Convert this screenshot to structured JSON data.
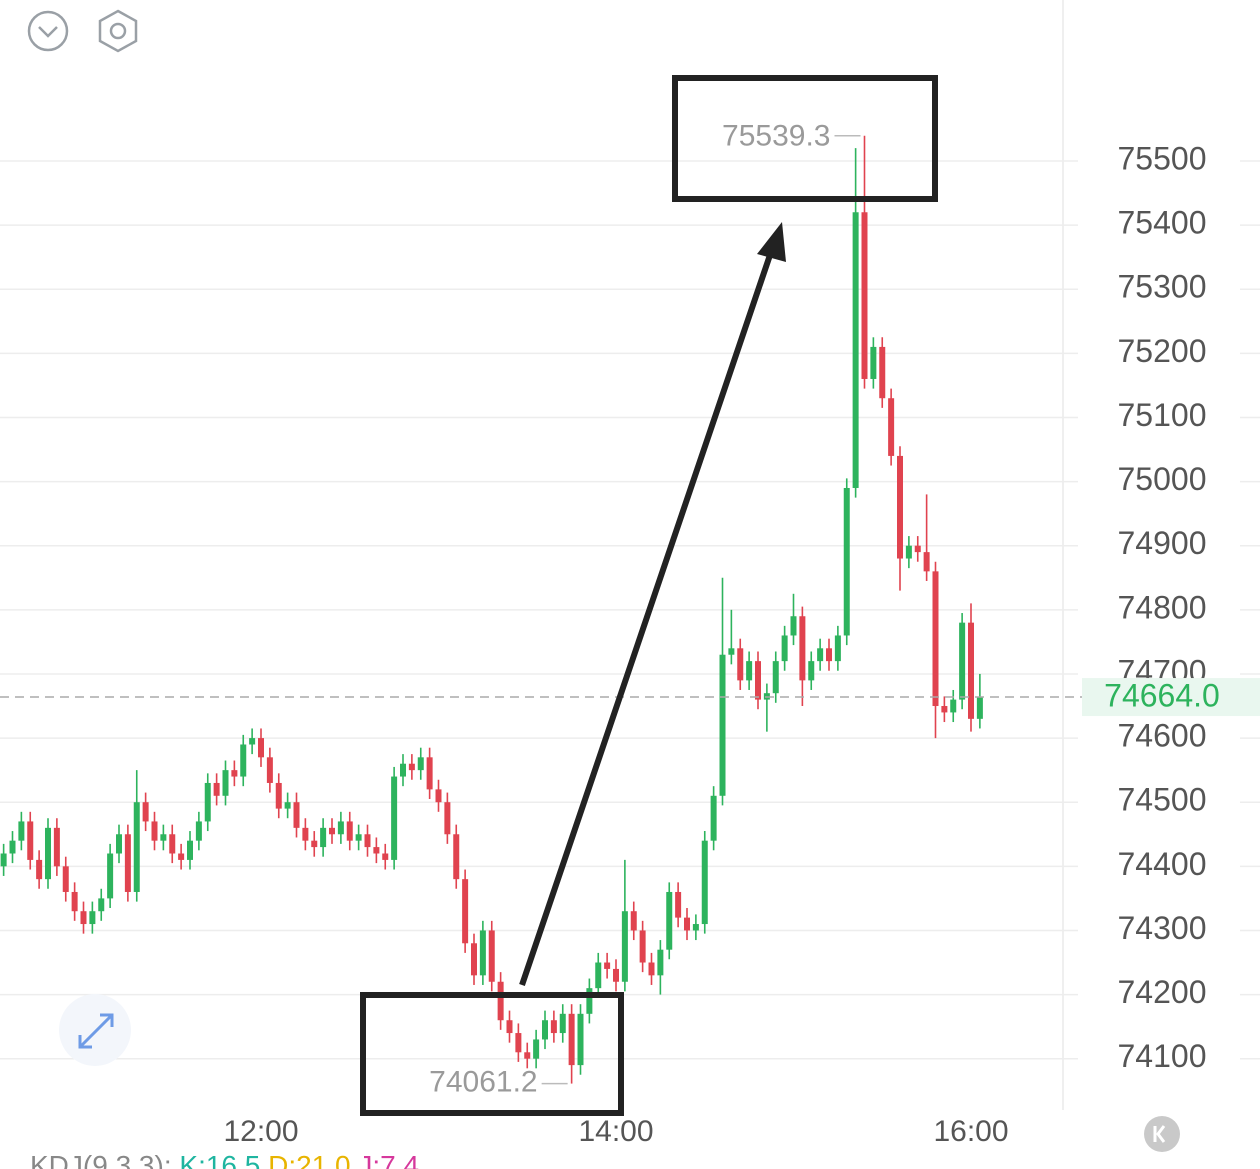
{
  "chart_data": {
    "type": "candlestick",
    "categories": [
      null,
      null,
      null,
      null,
      null,
      null,
      null,
      null,
      null,
      null,
      null,
      null,
      null,
      null,
      null,
      null,
      null,
      null,
      null,
      null,
      null,
      null,
      null,
      null,
      null,
      null,
      null,
      null,
      null,
      "12:00",
      null,
      null,
      null,
      null,
      null,
      null,
      null,
      null,
      null,
      null,
      null,
      null,
      null,
      null,
      null,
      null,
      null,
      null,
      null,
      null,
      null,
      null,
      null,
      null,
      null,
      null,
      null,
      null,
      null,
      null,
      null,
      null,
      null,
      null,
      null,
      null,
      null,
      null,
      null,
      "14:00",
      null,
      null,
      null,
      null,
      null,
      null,
      null,
      null,
      null,
      null,
      null,
      null,
      null,
      null,
      null,
      null,
      null,
      null,
      null,
      null,
      null,
      null,
      null,
      null,
      null,
      null,
      null,
      null,
      null,
      null,
      null,
      null,
      null,
      null,
      null,
      null,
      null,
      null,
      null,
      "16:00",
      null
    ],
    "open": [
      74400,
      74420,
      74440,
      74470,
      74410,
      74380,
      74460,
      74400,
      74360,
      74330,
      74310,
      74330,
      74350,
      74420,
      74450,
      74360,
      74500,
      74470,
      74440,
      74450,
      74420,
      74410,
      74440,
      74470,
      74530,
      74510,
      74550,
      74540,
      74590,
      74600,
      74570,
      74530,
      74490,
      74500,
      74460,
      74440,
      74430,
      74460,
      74450,
      74470,
      74440,
      74450,
      74430,
      74420,
      74410,
      74540,
      74560,
      74550,
      74570,
      74520,
      74500,
      74450,
      74380,
      74280,
      74230,
      74300,
      74220,
      74160,
      74140,
      74110,
      74100,
      74130,
      74160,
      74140,
      74170,
      74090,
      74170,
      74210,
      74250,
      74240,
      74220,
      74330,
      74300,
      74250,
      74230,
      74270,
      74360,
      74320,
      74300,
      74310,
      74440,
      74510,
      74730,
      74740,
      74690,
      74720,
      74660,
      74670,
      74720,
      74760,
      74790,
      74690,
      74720,
      74740,
      74720,
      74760,
      74990,
      75420,
      75160,
      75210,
      75130,
      75040,
      74880,
      74900,
      74890,
      74860,
      74650,
      74640,
      74660,
      74780,
      74630
    ],
    "high": [
      74435,
      74455,
      74485,
      74485,
      74425,
      74475,
      74475,
      74415,
      74375,
      74345,
      74345,
      74365,
      74435,
      74465,
      74465,
      74550,
      74515,
      74485,
      74465,
      74465,
      74435,
      74455,
      74485,
      74545,
      74545,
      74565,
      74565,
      74605,
      74615,
      74615,
      74585,
      74545,
      74515,
      74515,
      74475,
      74455,
      74475,
      74475,
      74485,
      74485,
      74465,
      74465,
      74445,
      74435,
      74555,
      74575,
      74575,
      74585,
      74585,
      74535,
      74515,
      74465,
      74395,
      74295,
      74315,
      74315,
      74235,
      74175,
      74155,
      74125,
      74145,
      74175,
      74175,
      74185,
      74185,
      74185,
      74225,
      74265,
      74265,
      74255,
      74410,
      74345,
      74315,
      74265,
      74285,
      74375,
      74375,
      74335,
      74325,
      74455,
      74525,
      74850,
      74800,
      74755,
      74735,
      74735,
      74685,
      74735,
      74775,
      74825,
      74805,
      74735,
      74755,
      74755,
      74775,
      75005,
      75520,
      75539.3,
      75225,
      75225,
      75145,
      75055,
      74915,
      74915,
      74980,
      74875,
      74665,
      74675,
      74795,
      74810,
      74700
    ],
    "low": [
      74385,
      74405,
      74425,
      74395,
      74365,
      74365,
      74385,
      74345,
      74315,
      74295,
      74295,
      74315,
      74335,
      74405,
      74345,
      74345,
      74455,
      74425,
      74425,
      74405,
      74395,
      74395,
      74425,
      74455,
      74495,
      74495,
      74525,
      74525,
      74575,
      74555,
      74515,
      74475,
      74475,
      74445,
      74425,
      74415,
      74415,
      74435,
      74435,
      74425,
      74425,
      74415,
      74405,
      74395,
      74395,
      74525,
      74535,
      74535,
      74505,
      74485,
      74435,
      74365,
      74265,
      74215,
      74215,
      74205,
      74145,
      74125,
      74095,
      74085,
      74085,
      74115,
      74125,
      74125,
      74061.2,
      74075,
      74155,
      74195,
      74225,
      74205,
      74205,
      74285,
      74235,
      74215,
      74200,
      74255,
      74305,
      74285,
      74285,
      74295,
      74425,
      74495,
      74715,
      74675,
      74675,
      74645,
      74610,
      74655,
      74705,
      74745,
      74650,
      74675,
      74705,
      74705,
      74705,
      74745,
      74975,
      75145,
      75145,
      75115,
      75025,
      74830,
      74865,
      74875,
      74845,
      74600,
      74625,
      74625,
      74645,
      74610,
      74615
    ],
    "close": [
      74420,
      74440,
      74470,
      74410,
      74380,
      74460,
      74400,
      74360,
      74330,
      74310,
      74330,
      74350,
      74420,
      74450,
      74360,
      74500,
      74470,
      74440,
      74450,
      74420,
      74410,
      74440,
      74470,
      74530,
      74510,
      74550,
      74540,
      74590,
      74600,
      74570,
      74530,
      74490,
      74500,
      74460,
      74440,
      74430,
      74460,
      74450,
      74470,
      74440,
      74450,
      74430,
      74420,
      74410,
      74540,
      74560,
      74550,
      74570,
      74520,
      74500,
      74450,
      74380,
      74280,
      74230,
      74300,
      74220,
      74160,
      74140,
      74110,
      74100,
      74130,
      74160,
      74140,
      74170,
      74090,
      74170,
      74210,
      74250,
      74240,
      74220,
      74330,
      74300,
      74250,
      74230,
      74270,
      74360,
      74320,
      74300,
      74310,
      74440,
      74510,
      74730,
      74740,
      74690,
      74720,
      74660,
      74670,
      74720,
      74760,
      74790,
      74690,
      74720,
      74740,
      74720,
      74760,
      74990,
      75420,
      75160,
      75210,
      75130,
      75040,
      74880,
      74900,
      74890,
      74860,
      74650,
      74640,
      74660,
      74780,
      74630,
      74664
    ],
    "up_color": "#2db35d",
    "down_color": "#e0434f",
    "ylim": [
      74020,
      75751
    ],
    "yticks": [
      74100,
      74200,
      74300,
      74400,
      74500,
      74600,
      74700,
      74800,
      74900,
      75000,
      75100,
      75200,
      75300,
      75400,
      75500
    ],
    "grid": true,
    "max_index": 97,
    "min_index": 64,
    "last_price": {
      "value": 74664,
      "label": "74664.0"
    },
    "indicator": {
      "name": "KDJ(9,3,3):",
      "k": "K:16.5",
      "d": "D:21.0",
      "j": "J:7.4"
    }
  }
}
